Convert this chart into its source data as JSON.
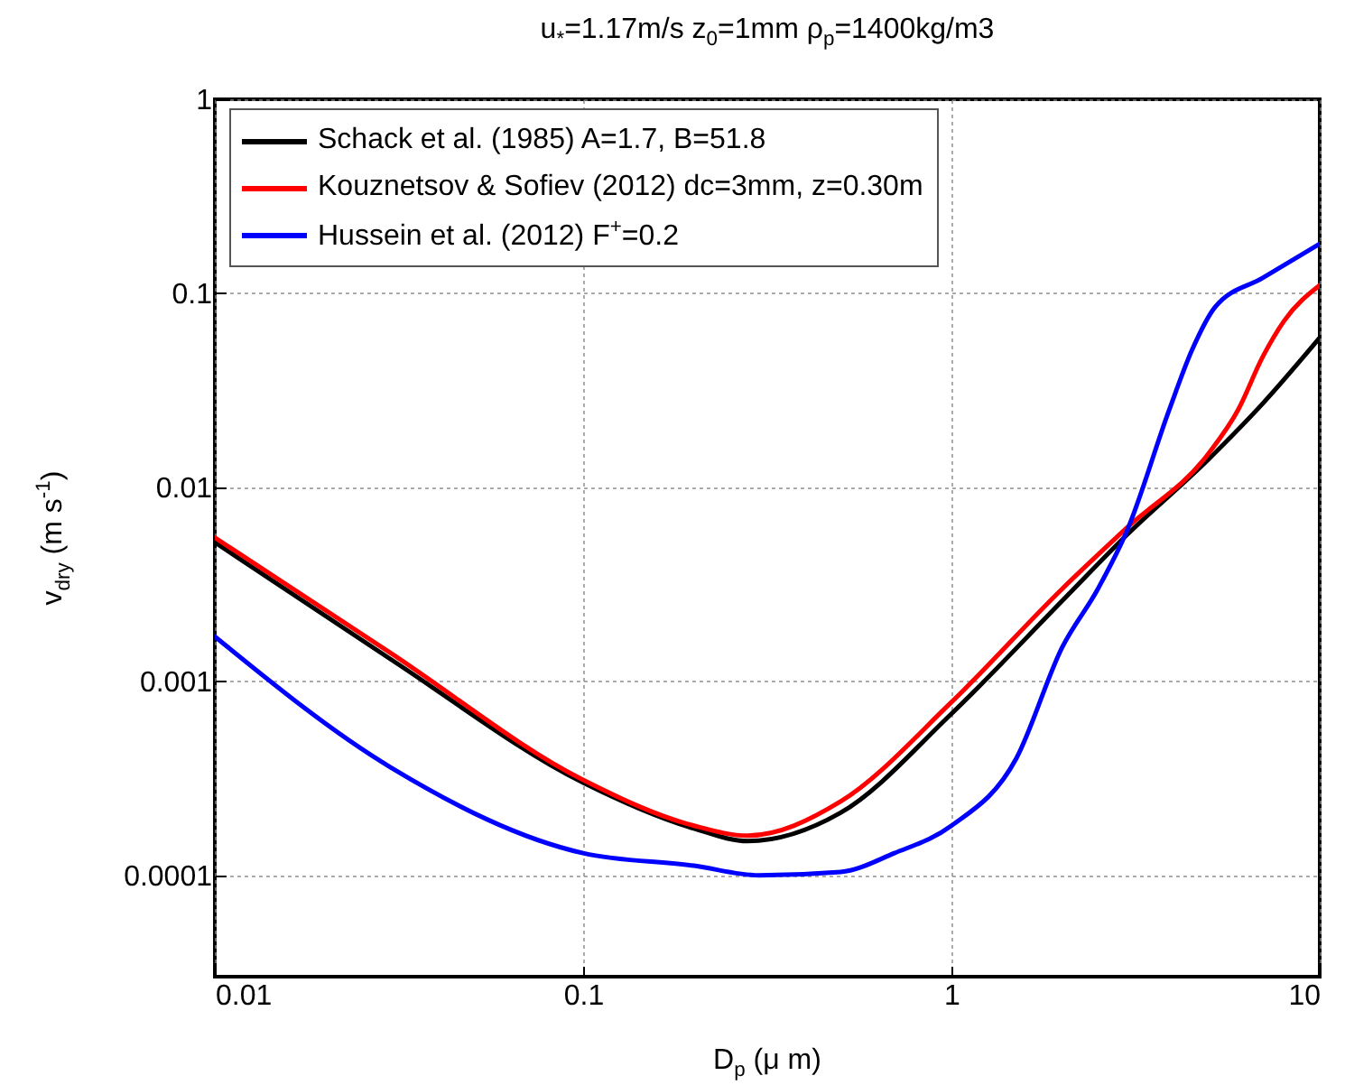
{
  "chart_data": {
    "type": "line",
    "title": "u$_{*}$=1.17m/s   z$_{0}$=1mm  ρ$_{p}$=1400kg/m3",
    "xlabel": "D$_{p}$ (μ m)",
    "ylabel": "v$_{dry}$ (m s$^{-1}$)",
    "log": "xy",
    "grid": true,
    "legend": "top left",
    "line_style": "solid",
    "xlim": [
      0.01,
      10
    ],
    "xticks": [
      0.01,
      0.1,
      1,
      10
    ],
    "ylim": [
      3e-05,
      1
    ],
    "yticks": [
      0.0001,
      0.001,
      0.01,
      0.1,
      1
    ],
    "series": [
      {
        "name": "Schack et al. (1985) A=1.7, B=51.8",
        "color": "#000000",
        "x": [
          0.01,
          0.03,
          0.1,
          0.2,
          0.28,
          0.5,
          1,
          2,
          3,
          5,
          7,
          10
        ],
        "values": [
          0.0052,
          0.0013,
          0.0003,
          0.000174,
          0.00015,
          0.00021,
          0.00068,
          0.0026,
          0.0057,
          0.014,
          0.027,
          0.059
        ]
      },
      {
        "name": "Kouznetsov & Sofiev (2012) dc=3mm, z=0.30m",
        "color": "#ff0000",
        "x": [
          0.01,
          0.03,
          0.1,
          0.2,
          0.28,
          0.5,
          1,
          2,
          3,
          5,
          6,
          7,
          8,
          10
        ],
        "values": [
          0.0055,
          0.0014,
          0.00031,
          0.00018,
          0.00016,
          0.00024,
          0.00078,
          0.003,
          0.0062,
          0.015,
          0.025,
          0.047,
          0.072,
          0.11
        ]
      },
      {
        "name": "Hussein et al. (2012) F$^{+}$=0.2",
        "color": "#0000ff",
        "x": [
          0.01,
          0.03,
          0.1,
          0.2,
          0.3,
          0.5,
          0.7,
          1,
          1.5,
          2,
          2.5,
          3,
          3.9,
          4.5,
          5.2,
          7,
          10
        ],
        "values": [
          0.0017,
          0.00036,
          0.00013,
          0.000112,
          0.0001,
          0.000104,
          0.00013,
          0.00018,
          0.0004,
          0.0015,
          0.003,
          0.006,
          0.025,
          0.051,
          0.085,
          0.12,
          0.18
        ]
      }
    ]
  }
}
